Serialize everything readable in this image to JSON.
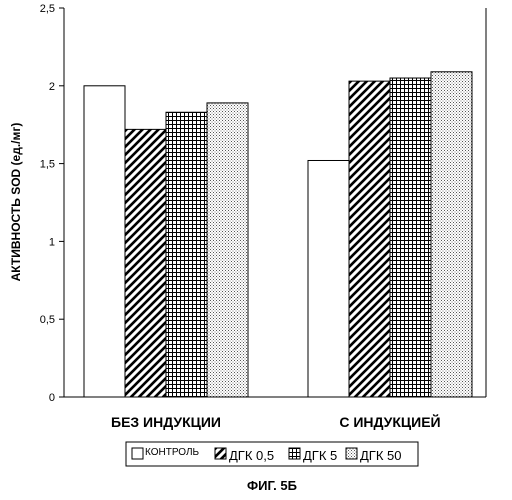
{
  "chart_data": {
    "type": "bar",
    "categories": [
      "БЕЗ ИНДУКЦИИ",
      "С ИНДУКЦИЕЙ"
    ],
    "series": [
      {
        "name": "КОНТРОЛЬ",
        "values": [
          2.0,
          1.52
        ],
        "pattern": "none"
      },
      {
        "name": "ДГК 0,5",
        "values": [
          1.72,
          2.03
        ],
        "pattern": "diagonal"
      },
      {
        "name": "ДГК 5",
        "values": [
          1.83,
          2.05
        ],
        "pattern": "grid"
      },
      {
        "name": "ДГК 50",
        "values": [
          1.89,
          2.09
        ],
        "pattern": "dots"
      }
    ],
    "ylabel": "АКТИВНОСТЬ SOD (ед./мг)",
    "ylim": [
      0,
      2.5
    ],
    "yticks": [
      "0",
      "0,5",
      "1",
      "1,5",
      "2",
      "2,5"
    ],
    "grid": false,
    "legend_position": "bottom"
  },
  "caption": "ФИГ. 5Б"
}
